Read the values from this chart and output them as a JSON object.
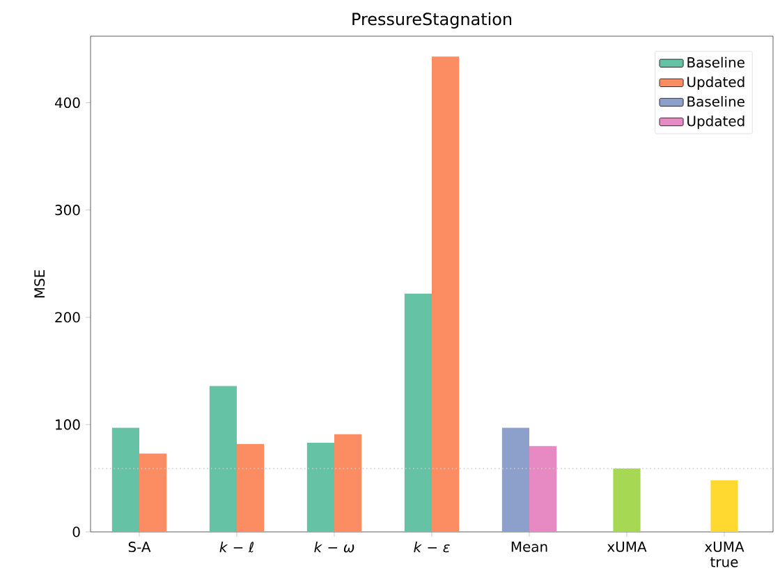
{
  "chart_data": {
    "type": "bar",
    "title": "PressureStagnation",
    "ylabel": "MSE",
    "categories": [
      "S-A",
      "*k* − *ℓ*",
      "*k* − *ω*",
      "*k* − *ε*",
      "Mean",
      "xUMA",
      "xUMA true"
    ],
    "series": [
      {
        "name": "Baseline",
        "color": "#66c2a5",
        "values": [
          97,
          136,
          83,
          222,
          null,
          null,
          null
        ]
      },
      {
        "name": "Updated",
        "color": "#fc8d62",
        "values": [
          73,
          82,
          91,
          443,
          null,
          null,
          null
        ]
      },
      {
        "name": "Baseline",
        "color": "#8da0cb",
        "values": [
          null,
          null,
          null,
          null,
          97,
          null,
          null
        ]
      },
      {
        "name": "Updated",
        "color": "#e78ac3",
        "values": [
          null,
          null,
          null,
          null,
          80,
          null,
          null
        ]
      },
      {
        "colors": [
          null,
          null,
          null,
          null,
          null,
          "#a6d854",
          "#ffd92f"
        ],
        "values": [
          null,
          null,
          null,
          null,
          null,
          59,
          48
        ]
      }
    ],
    "ylim": [
      0,
      462
    ],
    "yticks": [
      0,
      100,
      200,
      300,
      400
    ],
    "ref_lines": [
      {
        "axis": "y",
        "value": 59,
        "color": "#cccccc",
        "line_style": "dotted"
      }
    ],
    "legend": "top right"
  }
}
